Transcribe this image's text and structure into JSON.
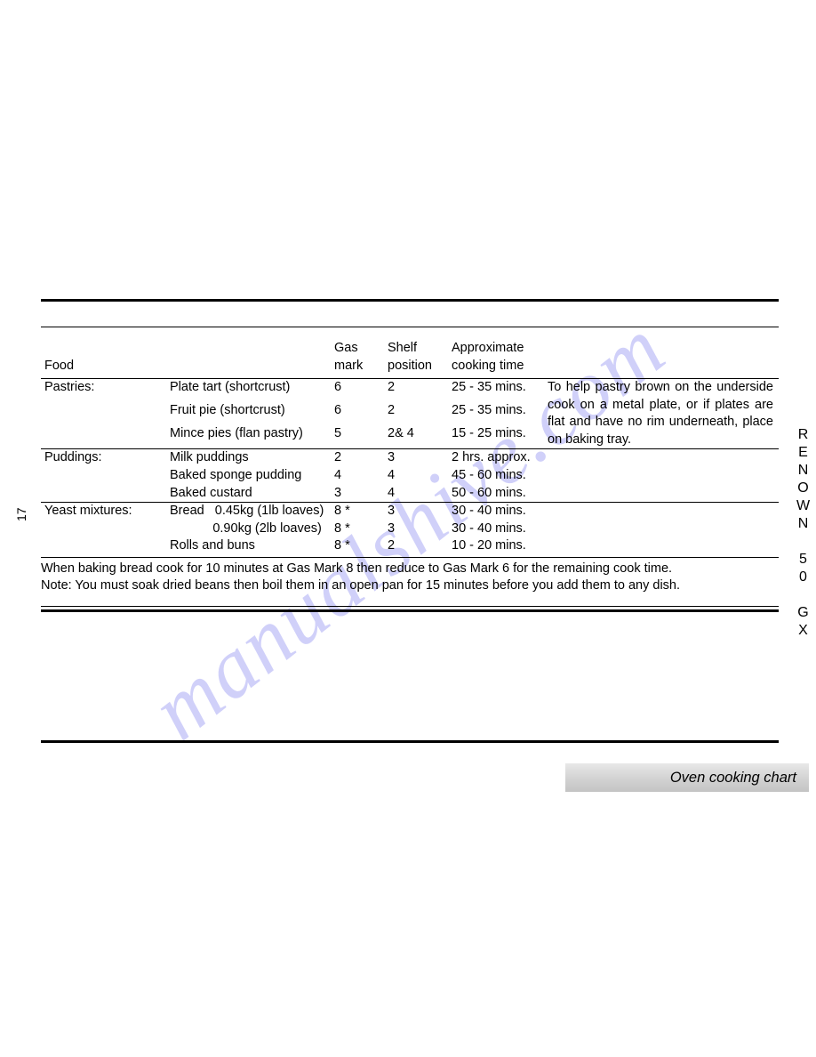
{
  "watermark_text": "manualshive.com",
  "page_number": "17",
  "side_label": "RENOWN 50 GX",
  "tab_label": "Oven cooking chart",
  "table": {
    "headers": {
      "food": "Food",
      "gas": "Gas mark",
      "shelf": "Shelf position",
      "time": "Approximate cooking time"
    },
    "sections": [
      {
        "category": "Pastries:",
        "note": "To help pastry brown on the underside cook on a metal plate, or if plates are flat and have no rim underneath, place on baking tray.",
        "rows": [
          {
            "item": "Plate tart (shortcrust)",
            "gas": "6",
            "shelf": "2",
            "time": "25 - 35 mins."
          },
          {
            "item": "Fruit pie (shortcrust)",
            "gas": "6",
            "shelf": "2",
            "time": "25 - 35 mins."
          },
          {
            "item": "Mince pies (flan pastry)",
            "gas": "5",
            "shelf": "2& 4",
            "time": "15 - 25 mins."
          }
        ]
      },
      {
        "category": "Puddings:",
        "note": "",
        "rows": [
          {
            "item": "Milk puddings",
            "gas": "2",
            "shelf": "3",
            "time": "2 hrs. approx."
          },
          {
            "item": "Baked sponge pudding",
            "gas": "4",
            "shelf": "4",
            "time": "45 - 60 mins."
          },
          {
            "item": "Baked custard",
            "gas": "3",
            "shelf": "4",
            "time": "50 - 60 mins."
          }
        ]
      },
      {
        "category": "Yeast mixtures:",
        "note": "",
        "rows": [
          {
            "item": "Bread   0.45kg (1lb loaves)",
            "gas": "8 *",
            "shelf": "3",
            "time": "30 - 40 mins."
          },
          {
            "item": "            0.90kg (2lb loaves)",
            "gas": "8 *",
            "shelf": "3",
            "time": "30 - 40 mins."
          },
          {
            "item": "Rolls and buns",
            "gas": "8 *",
            "shelf": "2",
            "time": "10 - 20 mins."
          }
        ]
      }
    ]
  },
  "footnotes": [
    "When baking bread cook for 10 minutes at Gas Mark 8 then reduce to Gas Mark 6 for the remaining cook time.",
    "Note: You must soak dried beans then boil them in an open pan for 15 minutes before you add them to any dish."
  ]
}
